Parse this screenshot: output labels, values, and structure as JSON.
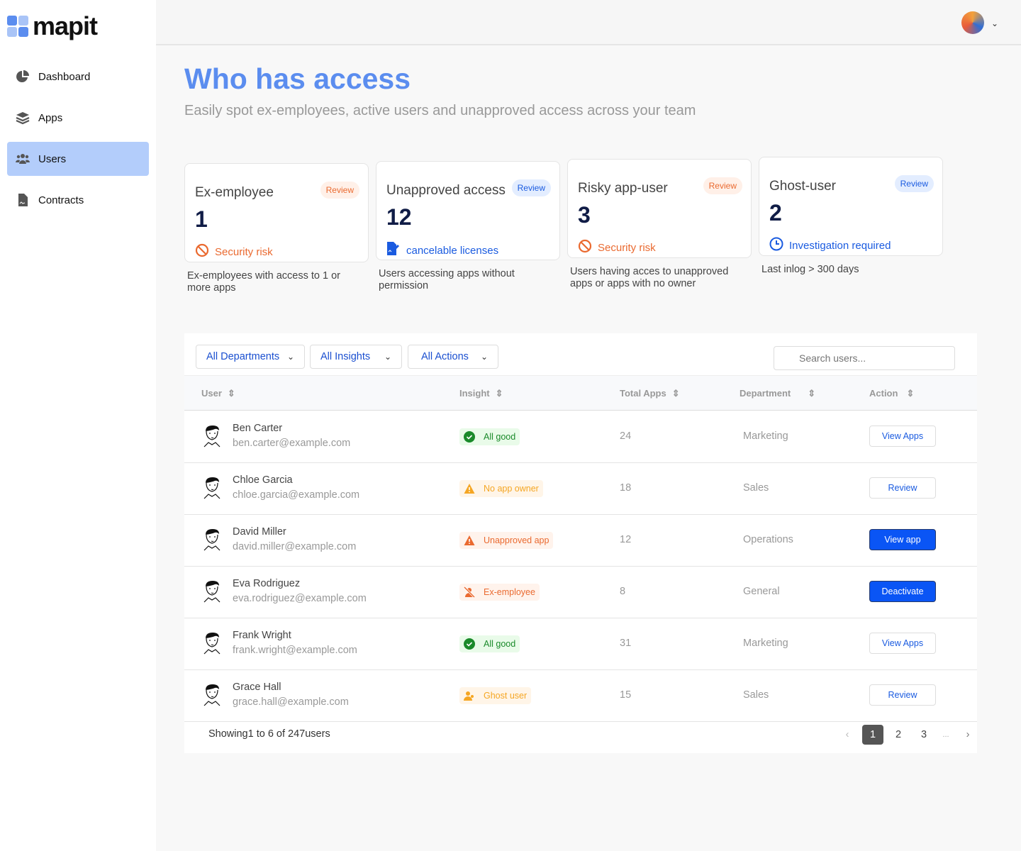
{
  "brand": {
    "name": "mapit",
    "accent": "#5b8def"
  },
  "sidebar": {
    "items": [
      {
        "label": "Dashboard",
        "icon": "pie-chart-icon"
      },
      {
        "label": "Apps",
        "icon": "layers-icon"
      },
      {
        "label": "Users",
        "icon": "users-icon",
        "active": true
      },
      {
        "label": "Contracts",
        "icon": "document-icon"
      }
    ]
  },
  "header": {
    "title": "Who has access",
    "subtitle": "Easily spot ex-employees, active users and unapproved access across your team"
  },
  "cards": [
    {
      "title": "Ex-employee",
      "badge": "Review",
      "count": "1",
      "footer": "Security risk",
      "footer_icon": "ban-icon",
      "description": "Ex-employees with access to 1 or more apps"
    },
    {
      "title": "Unapproved access",
      "badge": "Review",
      "count": "12",
      "footer": "cancelable licenses",
      "footer_icon": "document-edit-icon",
      "description": "Users accessing apps without permission"
    },
    {
      "title": "Risky app-user",
      "badge": "Review",
      "count": "3",
      "footer": "Security risk",
      "footer_icon": "ban-icon",
      "description": "Users having acces to unapproved apps or apps with no owner"
    },
    {
      "title": "Ghost-user",
      "badge": "Review",
      "count": "2",
      "footer": "Investigation required",
      "footer_icon": "clock-icon",
      "description": "Last inlog > 300 days"
    }
  ],
  "filters": {
    "department": "All Departments",
    "insight": "All Insights",
    "action": "All Actions",
    "search_placeholder": "Search users..."
  },
  "table": {
    "columns": [
      "User",
      "Insight",
      "Total Apps",
      "Department",
      "Action"
    ],
    "rows": [
      {
        "name": "Ben Carter",
        "email": "ben.carter@example.com",
        "insight": "All good",
        "insight_type": "good",
        "total": "24",
        "department": "Marketing",
        "action": "View Apps",
        "primary": false
      },
      {
        "name": "Chloe Garcia",
        "email": "chloe.garcia@example.com",
        "insight": "No app owner",
        "insight_type": "warn",
        "total": "18",
        "department": "Sales",
        "action": "Review",
        "primary": false
      },
      {
        "name": "David Miller",
        "email": "david.miller@example.com",
        "insight": "Unapproved app",
        "insight_type": "danger",
        "total": "12",
        "department": "Operations",
        "action": "View app",
        "primary": true
      },
      {
        "name": "Eva Rodriguez",
        "email": "eva.rodriguez@example.com",
        "insight": "Ex-employee",
        "insight_type": "ex",
        "total": "8",
        "department": "General",
        "action": "Deactivate",
        "primary": true
      },
      {
        "name": "Frank Wright",
        "email": "frank.wright@example.com",
        "insight": "All good",
        "insight_type": "good",
        "total": "31",
        "department": "Marketing",
        "action": "View Apps",
        "primary": false
      },
      {
        "name": "Grace Hall",
        "email": "grace.hall@example.com",
        "insight": "Ghost user",
        "insight_type": "ghost",
        "total": "15",
        "department": "Sales",
        "action": "Review",
        "primary": false
      }
    ]
  },
  "pagination": {
    "showing": "Showing1 to 6 of 247users",
    "pages": [
      "1",
      "2",
      "3"
    ],
    "current": "1",
    "ellipsis": "..."
  }
}
